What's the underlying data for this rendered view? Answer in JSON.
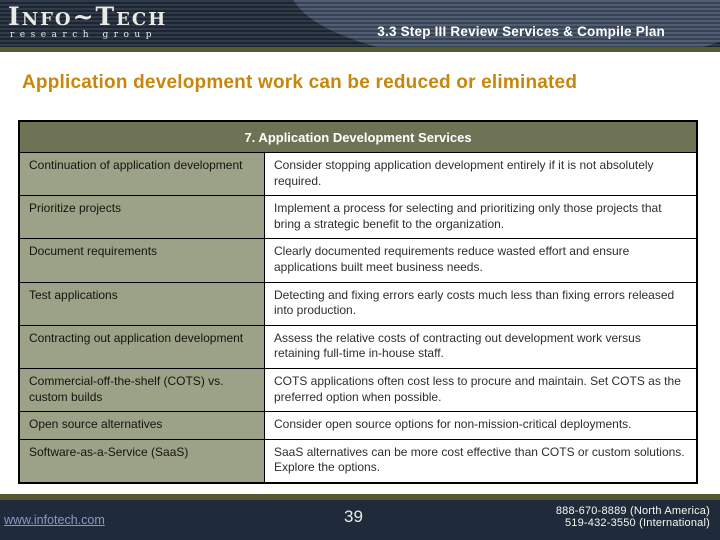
{
  "header": {
    "logo_name": "Info~Tech",
    "logo_subtitle": "research group",
    "step_title": "3.3 Step III Review Services & Compile Plan"
  },
  "slide": {
    "title": "Application development work can be reduced or eliminated"
  },
  "table": {
    "header": "7. Application Development Services",
    "rows": [
      {
        "service": "Continuation of application development",
        "description": "Consider stopping application development entirely if it is not absolutely required."
      },
      {
        "service": "Prioritize projects",
        "description": "Implement a process for selecting and prioritizing only those projects that bring a strategic benefit to the organization."
      },
      {
        "service": "Document requirements",
        "description": "Clearly documented requirements reduce wasted effort and ensure applications built meet business needs."
      },
      {
        "service": "Test applications",
        "description": "Detecting and fixing errors early costs much less than fixing errors released into production."
      },
      {
        "service": "Contracting out application development",
        "description": "Assess the relative costs of contracting out development work versus retaining full-time in-house staff."
      },
      {
        "service": "Commercial-off-the-shelf (COTS) vs. custom builds",
        "description": "COTS applications often cost less to procure and maintain. Set COTS as the preferred option when possible."
      },
      {
        "service": "Open source alternatives",
        "description": "Consider open source options for non-mission-critical deployments."
      },
      {
        "service": "Software-as-a-Service (SaaS)",
        "description": "SaaS alternatives can be more cost effective than COTS or custom solutions. Explore the options."
      }
    ]
  },
  "footer": {
    "website": "www.infotech.com",
    "page_number": "39",
    "phone_na": "888-670-8889 (North America)",
    "phone_intl": "519-432-3550 (International)"
  },
  "colors": {
    "header_navy": "#232e3e",
    "footer_navy": "#1f2a3a",
    "accent_olive": "#565a32",
    "title_orange": "#c8860b",
    "table_header_olive": "#6f7355",
    "left_column_sage": "#9ca287",
    "link_periwinkle": "#9196c5"
  }
}
